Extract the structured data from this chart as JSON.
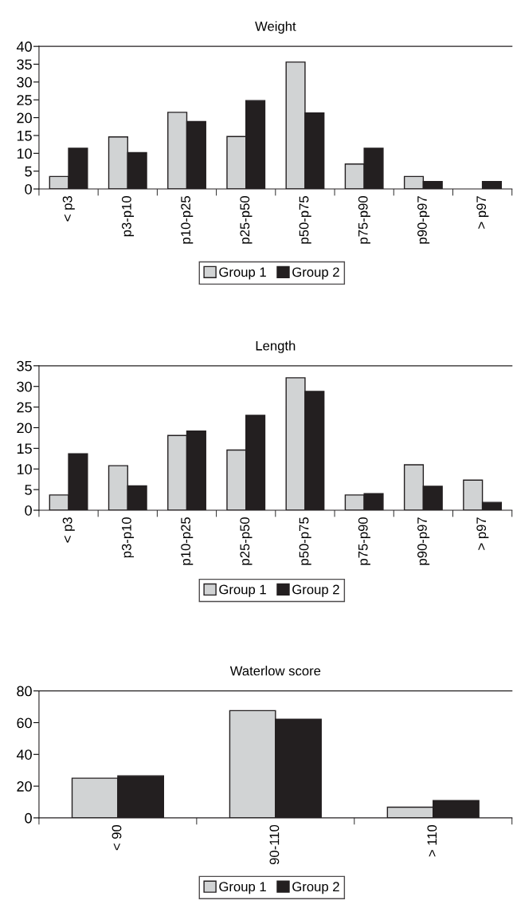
{
  "chart_data": [
    {
      "type": "bar",
      "title": "Weight",
      "categories": [
        "< p3",
        "p3-p10",
        "p10-p25",
        "p25-p50",
        "p50-p75",
        "p75-p90",
        "p90-p97",
        "> p97"
      ],
      "series": [
        {
          "name": "Group 1",
          "color": "#d1d3d4",
          "values": [
            3.5,
            14.6,
            21.5,
            14.7,
            35.6,
            7.0,
            3.5,
            null
          ]
        },
        {
          "name": "Group 2",
          "color": "#231f20",
          "values": [
            11.4,
            10.2,
            18.9,
            24.8,
            21.3,
            11.4,
            2.1,
            2.1
          ]
        }
      ],
      "ylim": [
        0,
        40
      ],
      "yticks": [
        0,
        5,
        10,
        15,
        20,
        25,
        30,
        35,
        40
      ],
      "legend": "bottom",
      "grid": false
    },
    {
      "type": "bar",
      "title": "Length",
      "categories": [
        "< p3",
        "p3-p10",
        "p10-p25",
        "p25-p50",
        "p50-p75",
        "p75-p90",
        "p90-p97",
        "> p97"
      ],
      "series": [
        {
          "name": "Group 1",
          "color": "#d1d3d4",
          "values": [
            3.7,
            10.8,
            18.1,
            14.6,
            32.1,
            3.7,
            11.0,
            7.3
          ]
        },
        {
          "name": "Group 2",
          "color": "#231f20",
          "values": [
            13.7,
            5.9,
            19.2,
            23.0,
            28.8,
            4.0,
            5.8,
            1.9
          ]
        }
      ],
      "ylim": [
        0,
        35
      ],
      "yticks": [
        0,
        5,
        10,
        15,
        20,
        25,
        30,
        35
      ],
      "legend": "bottom",
      "grid": false
    },
    {
      "type": "bar",
      "title": "Waterlow score",
      "categories": [
        "< 90",
        "90-110",
        "> 110"
      ],
      "series": [
        {
          "name": "Group 1",
          "color": "#d1d3d4",
          "values": [
            25.0,
            67.6,
            6.7
          ]
        },
        {
          "name": "Group 2",
          "color": "#231f20",
          "values": [
            26.5,
            62.2,
            10.9
          ]
        }
      ],
      "ylim": [
        0,
        80
      ],
      "yticks": [
        0,
        20,
        40,
        60,
        80
      ],
      "legend": "bottom",
      "grid": false
    }
  ]
}
